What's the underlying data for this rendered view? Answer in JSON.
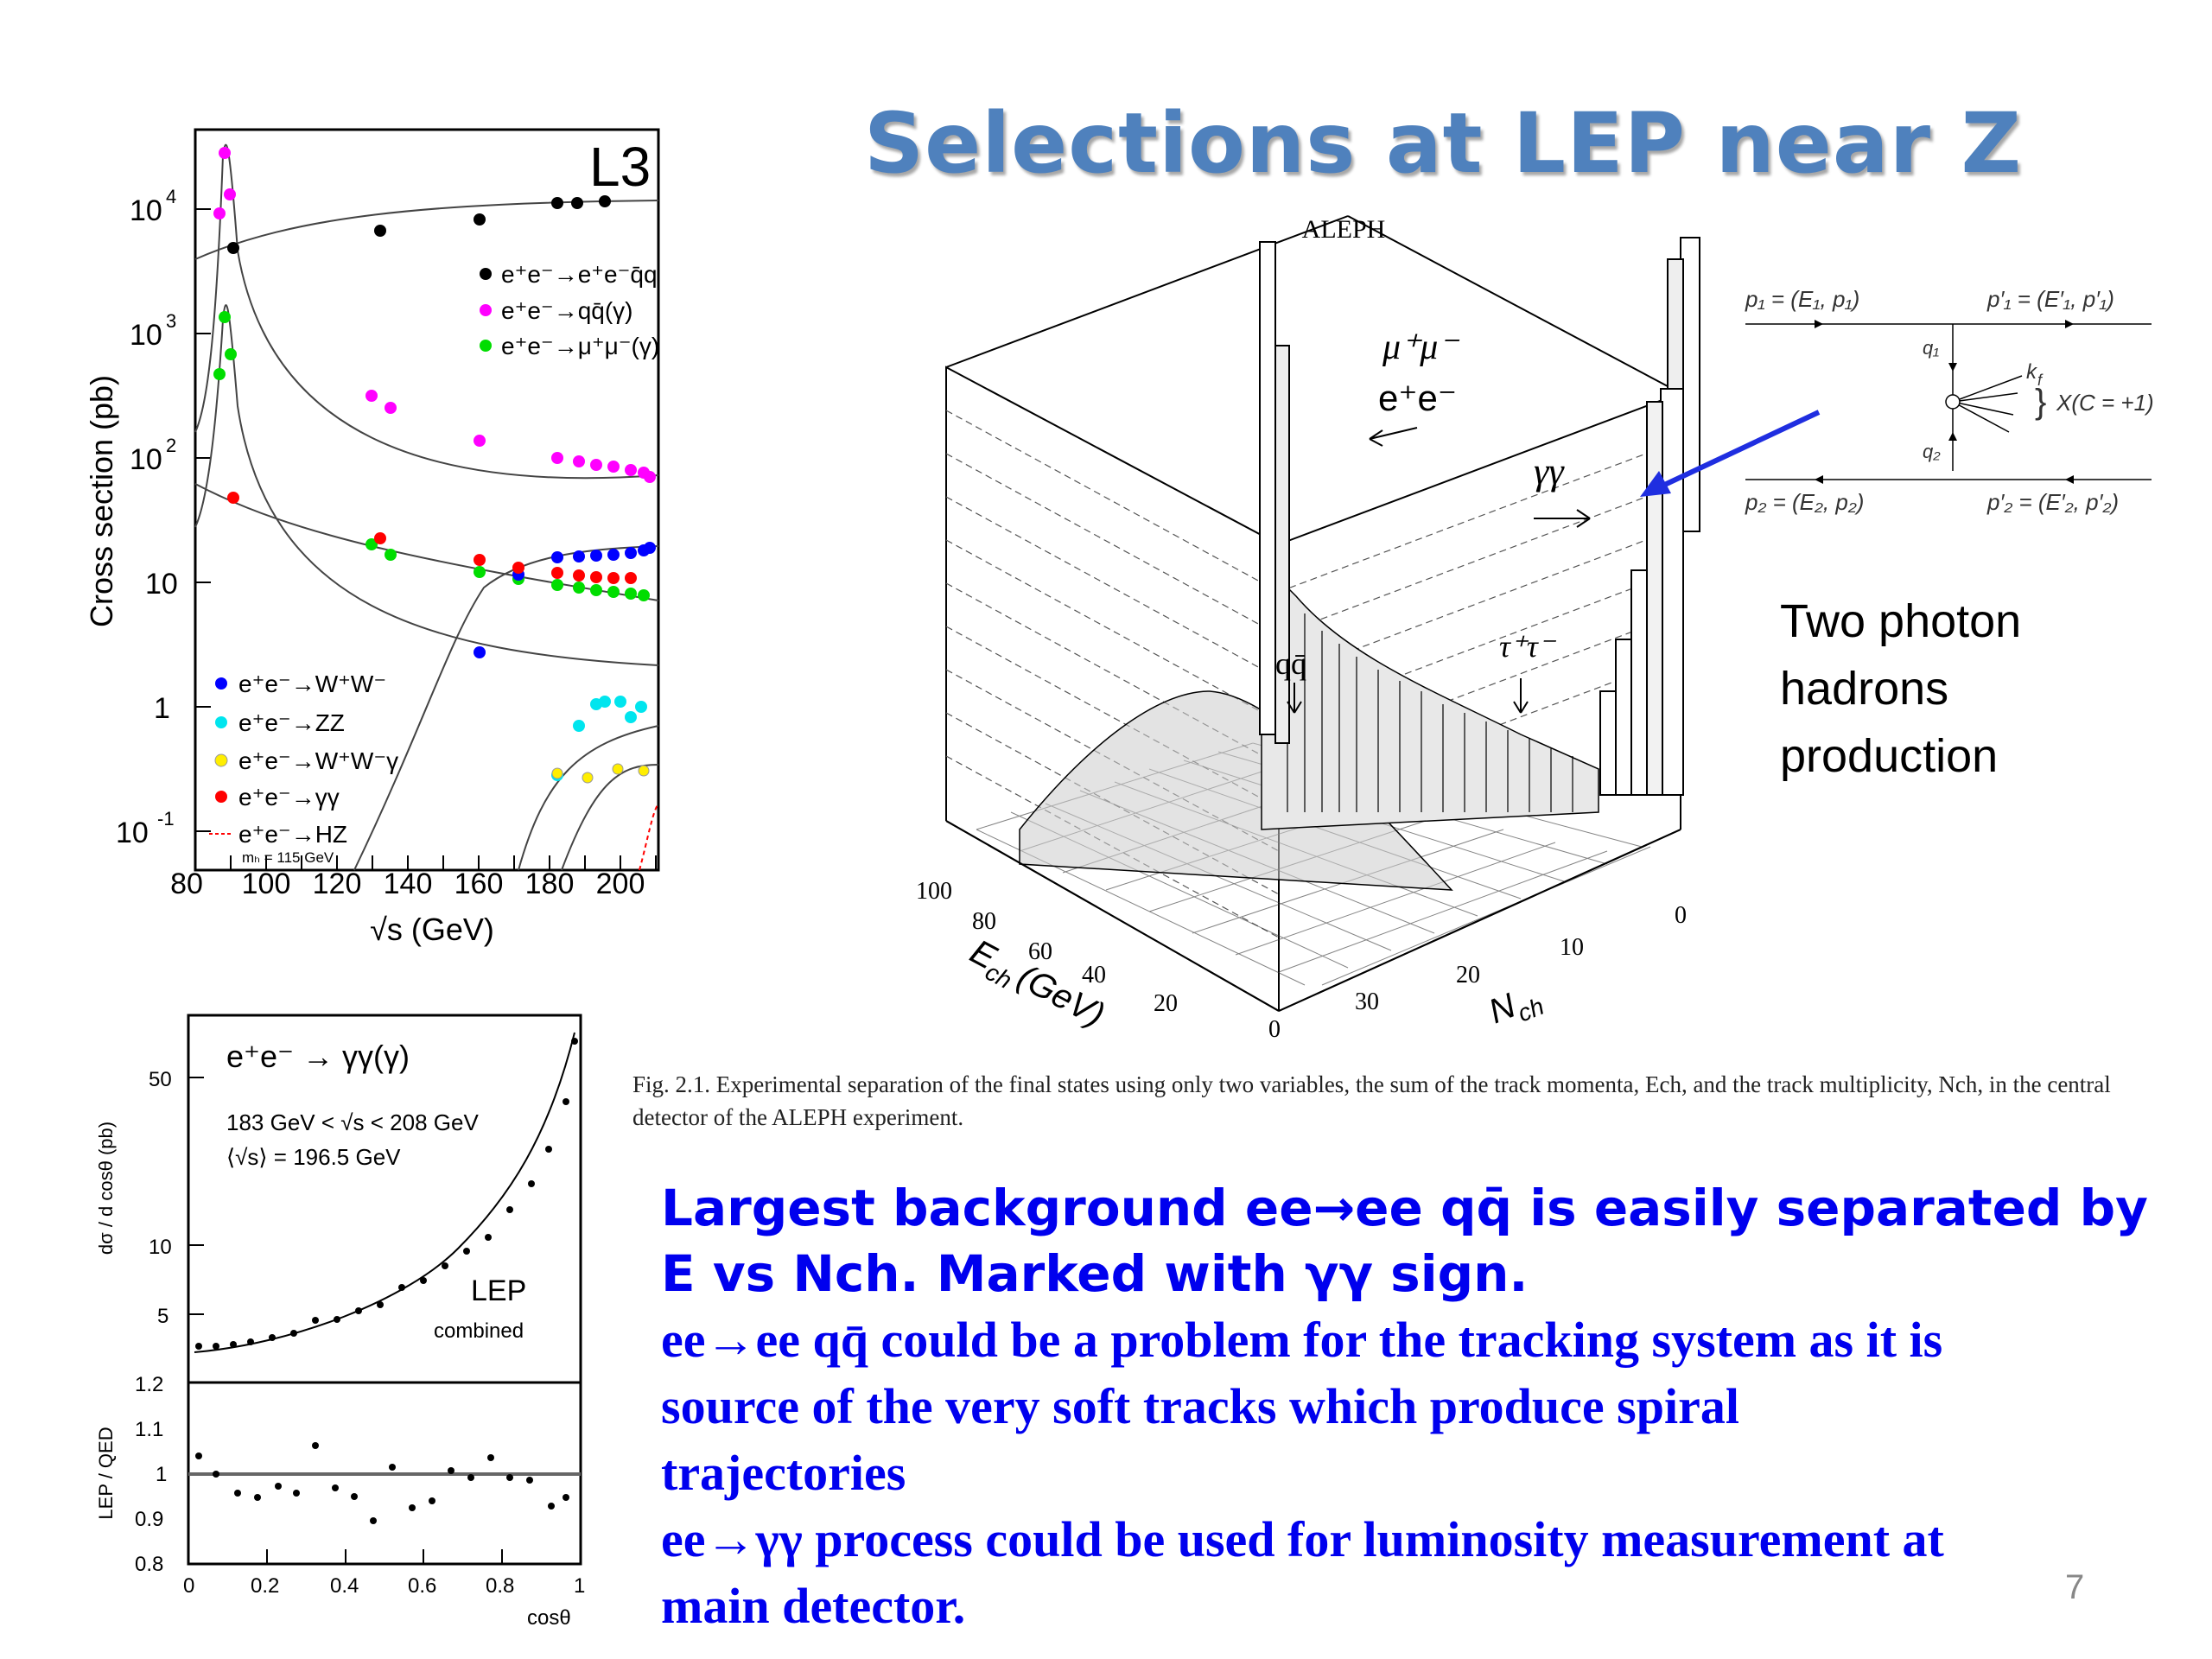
{
  "title": "Selections at LEP near Z",
  "l3_plot": {
    "label": "L3",
    "ylabel": "Cross section (pb)",
    "xlabel": "√s (GeV)",
    "xticks": [
      "80",
      "100",
      "120",
      "140",
      "160",
      "180",
      "200"
    ],
    "ytick_10": "10",
    "ytick_1": "1",
    "yexp_4": "4",
    "yexp_3": "3",
    "yexp_2": "2",
    "yexp_m1": "-1",
    "legend_top": [
      "e⁺e⁻→e⁺e⁻q̄q",
      "e⁺e⁻→qq̄(γ)",
      "e⁺e⁻→μ⁺μ⁻(γ)"
    ],
    "legend_bottom": [
      "e⁺e⁻→W⁺W⁻",
      "e⁺e⁻→ZZ",
      "e⁺e⁻→W⁺W⁻γ",
      "e⁺e⁻→γγ",
      "e⁺e⁻→HZ"
    ],
    "hz_note": "mₕ = 115 GeV",
    "colors": {
      "qq_ee": "#000000",
      "qq": "#ff00ff",
      "mumu": "#00dd00",
      "ww": "#0000ff",
      "zz": "#00e5ee",
      "wwg": "#ffee00",
      "gg": "#ff0000",
      "hz": "#ff0000"
    }
  },
  "lep_plot": {
    "process": "e⁺e⁻ → γγ(γ)",
    "range": "183 GeV < √s < 208 GeV",
    "mean": "⟨√s⟩ = 196.5 GeV",
    "lep": "LEP",
    "combined": "combined",
    "ylabel": "dσ / d cosθ (pb)",
    "ratio_ylabel": "LEP / QED",
    "xlabel": "cosθ",
    "yticks": [
      "50",
      "10",
      "5"
    ],
    "ratio_yticks": [
      "1.2",
      "1.1",
      "1",
      "0.9",
      "0.8"
    ],
    "xticks": [
      "0",
      "0.2",
      "0.4",
      "0.6",
      "0.8",
      "1"
    ]
  },
  "aleph_plot": {
    "title": "ALEPH",
    "labels": {
      "mumu": "μ⁺μ⁻",
      "ee": "e⁺e⁻",
      "gg": "γγ",
      "qq": "qq̄",
      "tautau": "τ⁺τ⁻"
    },
    "ech_label": "E",
    "ech_sub": "ch",
    "ech_unit": "(GeV)",
    "nch_label": "N",
    "nch_sub": "ch",
    "ech_ticks": [
      "100",
      "80",
      "60",
      "40",
      "20",
      "0"
    ],
    "nch_ticks": [
      "0",
      "10",
      "20",
      "30"
    ]
  },
  "feynman": {
    "p1": "p₁ = (E₁, p₁)",
    "p1p": "p′₁ = (E′₁, p′₁)",
    "p2": "p₂ = (E₂, p₂)",
    "p2p": "p′₂ = (E′₂, p′₂)",
    "q1": "q₁",
    "q2": "q₂",
    "kf": "k",
    "kf_sub": "f",
    "x": "X(C = +1)"
  },
  "annotation": [
    "Two photon",
    "hadrons",
    "production"
  ],
  "caption": "Fig. 2.1. Experimental separation of the final states using only two variables, the sum of the track momenta, Ech, and the track multiplicity, Nch, in the central detector of the ALEPH experiment.",
  "body": {
    "line1": "Largest background ee→ee qq̄ is easily separated by",
    "line2": "E vs Nch. Marked with γγ sign.",
    "line3": "ee→ee qq̄ could be a problem for the tracking system as it is",
    "line4": "source of the very soft tracks which produce spiral",
    "line5": "trajectories",
    "line6": "ee→γγ process could be used for luminosity measurement at",
    "line7": "main detector."
  },
  "page_number": "7"
}
